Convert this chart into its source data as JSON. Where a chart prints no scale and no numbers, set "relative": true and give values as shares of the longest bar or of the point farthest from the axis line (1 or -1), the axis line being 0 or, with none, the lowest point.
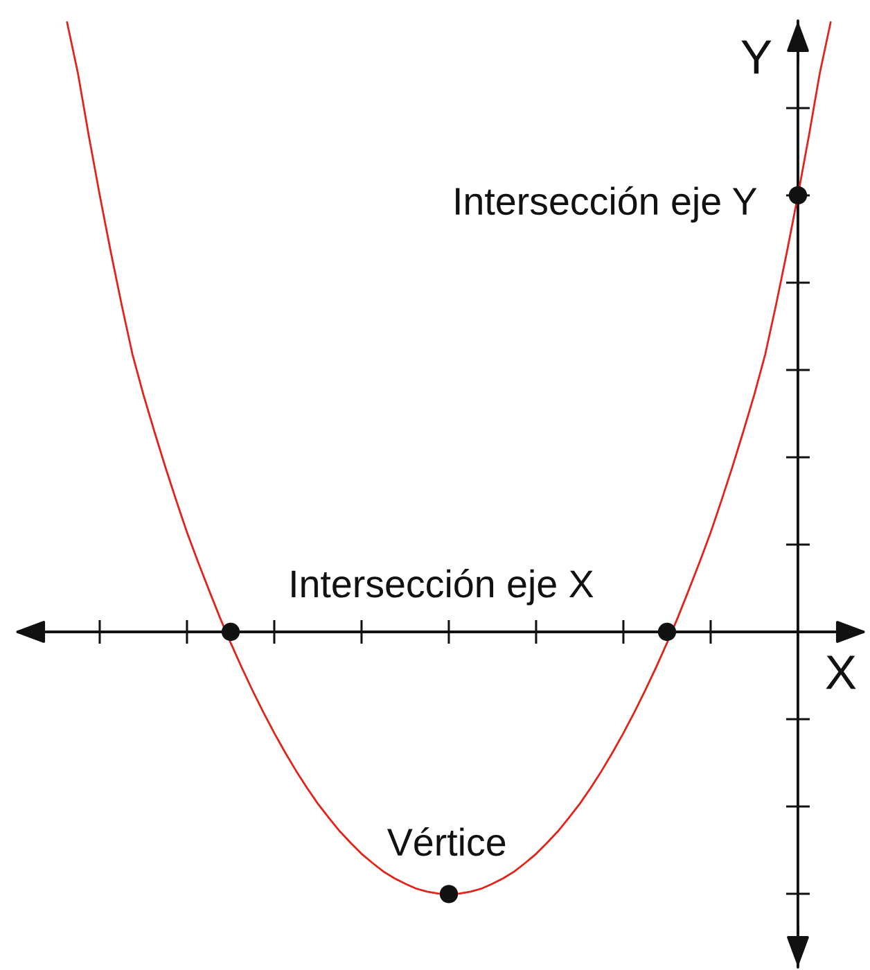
{
  "chart_data": {
    "type": "line",
    "relative": true,
    "xlabel": "X",
    "ylabel": "Y",
    "categories": [
      null,
      null,
      null,
      null,
      null,
      null,
      null,
      null,
      null,
      null,
      null,
      null,
      null,
      null,
      null,
      null,
      null,
      null,
      null,
      null,
      null,
      null,
      null,
      null,
      null,
      null,
      null,
      null,
      null,
      null,
      null,
      null,
      null,
      null,
      null,
      null,
      null,
      null,
      null,
      null,
      null,
      null,
      null,
      null,
      null,
      null,
      null,
      null,
      null,
      null,
      null,
      null,
      null,
      null,
      null,
      null,
      null,
      null,
      null,
      null,
      null,
      null,
      null,
      null,
      null,
      null,
      null,
      null,
      null,
      null,
      null
    ],
    "series": [
      {
        "color": "#e2231a",
        "values": [
          1.0,
          0.916,
          0.813,
          0.716,
          0.624,
          0.537,
          0.455,
          0.389,
          0.329,
          0.271,
          0.216,
          0.163,
          0.115,
          0.069,
          0.024,
          -0.018,
          -0.058,
          -0.096,
          -0.132,
          -0.166,
          -0.198,
          -0.228,
          -0.256,
          -0.282,
          -0.305,
          -0.327,
          -0.346,
          -0.364,
          -0.379,
          -0.393,
          -0.404,
          -0.413,
          -0.421,
          -0.426,
          -0.429,
          -0.43,
          -0.429,
          -0.426,
          -0.421,
          -0.413,
          -0.404,
          -0.393,
          -0.379,
          -0.364,
          -0.346,
          -0.327,
          -0.305,
          -0.282,
          -0.256,
          -0.228,
          -0.198,
          -0.166,
          -0.132,
          -0.096,
          -0.058,
          -0.018,
          0.024,
          0.069,
          0.115,
          0.163,
          0.216,
          0.271,
          0.329,
          0.389,
          0.455,
          0.537,
          0.624,
          0.716,
          0.813,
          0.916,
          1.0
        ]
      },
      {
        "color": "#111111",
        "marker": "circle",
        "values": [
          null,
          null,
          null,
          null,
          null,
          null,
          null,
          null,
          null,
          null,
          null,
          null,
          null,
          null,
          null,
          0,
          null,
          null,
          null,
          null,
          null,
          null,
          null,
          null,
          null,
          null,
          null,
          null,
          null,
          null,
          null,
          null,
          null,
          null,
          null,
          -0.43,
          null,
          null,
          null,
          null,
          null,
          null,
          null,
          null,
          null,
          null,
          null,
          null,
          null,
          null,
          null,
          null,
          null,
          null,
          null,
          0,
          null,
          null,
          null,
          null,
          null,
          null,
          null,
          null,
          null,
          null,
          null,
          0.716,
          null,
          null,
          null
        ]
      }
    ],
    "annotations": [
      "Intersección eje Y",
      "Intersección eje X",
      {
        "text": "Vértice",
        "y": -0.43
      }
    ]
  }
}
